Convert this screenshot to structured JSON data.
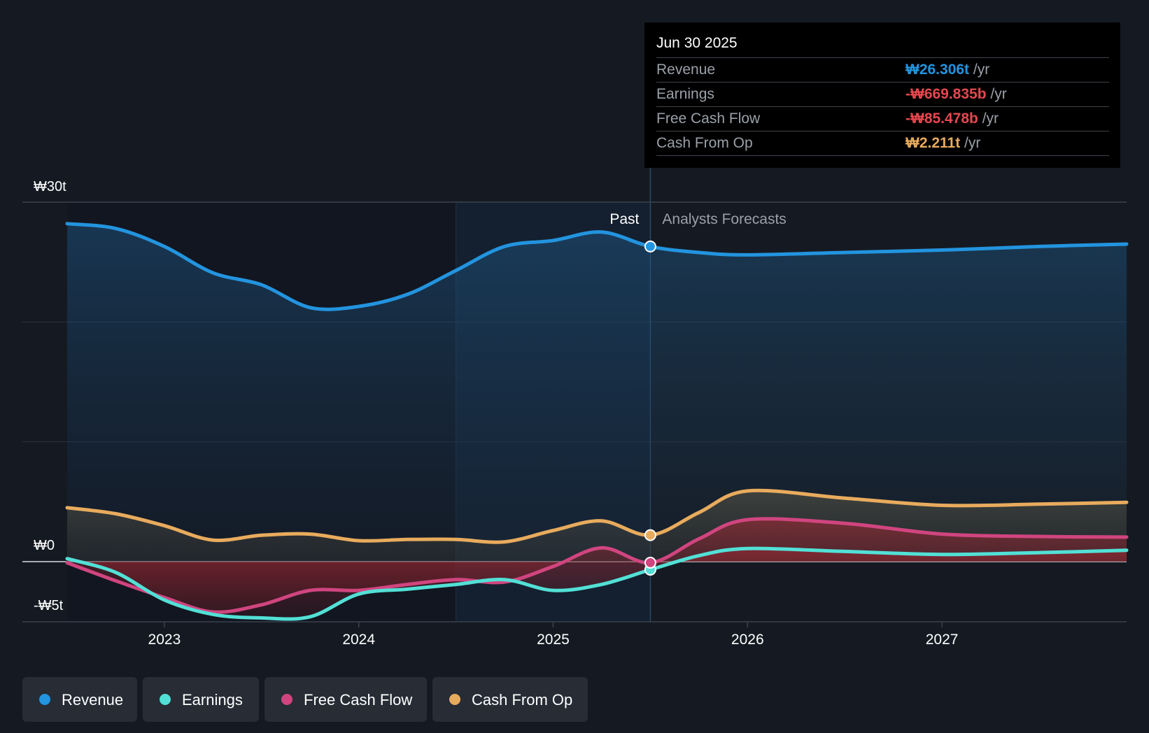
{
  "chart_data": {
    "type": "area",
    "title": "",
    "y_axis": {
      "unit_prefix": "₩",
      "ticks": [
        {
          "value": 30,
          "label": "₩30t"
        },
        {
          "value": 0,
          "label": "₩0"
        },
        {
          "value": -5,
          "label": "-₩5t"
        }
      ],
      "range": [
        -5,
        30
      ]
    },
    "x_axis": {
      "ticks": [
        "2023",
        "2024",
        "2025",
        "2026",
        "2027"
      ],
      "range": [
        2022.5,
        2027.95
      ]
    },
    "past_label": "Past",
    "forecast_label": "Analysts Forecasts",
    "divider_x": 2025.5,
    "highlight_start_x": 2024.5,
    "series": [
      {
        "name": "Revenue",
        "color": "#2394df",
        "points": [
          [
            2022.5,
            28.2
          ],
          [
            2022.75,
            27.8
          ],
          [
            2023.0,
            26.3
          ],
          [
            2023.25,
            24.1
          ],
          [
            2023.5,
            23.1
          ],
          [
            2023.75,
            21.2
          ],
          [
            2024.0,
            21.3
          ],
          [
            2024.25,
            22.3
          ],
          [
            2024.5,
            24.3
          ],
          [
            2024.75,
            26.3
          ],
          [
            2025.0,
            26.8
          ],
          [
            2025.25,
            27.5
          ],
          [
            2025.5,
            26.3
          ],
          [
            2025.75,
            25.8
          ],
          [
            2026.0,
            25.6
          ],
          [
            2026.5,
            25.8
          ],
          [
            2027.0,
            26.0
          ],
          [
            2027.5,
            26.3
          ],
          [
            2027.95,
            26.5
          ]
        ]
      },
      {
        "name": "Earnings",
        "color": "#52e0d6",
        "points": [
          [
            2022.5,
            0.25
          ],
          [
            2022.75,
            -0.9
          ],
          [
            2023.0,
            -3.2
          ],
          [
            2023.25,
            -4.4
          ],
          [
            2023.5,
            -4.7
          ],
          [
            2023.75,
            -4.6
          ],
          [
            2024.0,
            -2.7
          ],
          [
            2024.25,
            -2.3
          ],
          [
            2024.5,
            -1.9
          ],
          [
            2024.75,
            -1.5
          ],
          [
            2025.0,
            -2.4
          ],
          [
            2025.25,
            -1.9
          ],
          [
            2025.5,
            -0.67
          ],
          [
            2025.75,
            0.5
          ],
          [
            2026.0,
            1.1
          ],
          [
            2026.5,
            0.85
          ],
          [
            2027.0,
            0.6
          ],
          [
            2027.5,
            0.75
          ],
          [
            2027.95,
            0.95
          ]
        ]
      },
      {
        "name": "Free Cash Flow",
        "color": "#d0457f",
        "points": [
          [
            2022.5,
            -0.1
          ],
          [
            2022.75,
            -1.6
          ],
          [
            2023.0,
            -3.0
          ],
          [
            2023.25,
            -4.2
          ],
          [
            2023.5,
            -3.6
          ],
          [
            2023.75,
            -2.4
          ],
          [
            2024.0,
            -2.4
          ],
          [
            2024.25,
            -1.9
          ],
          [
            2024.5,
            -1.5
          ],
          [
            2024.75,
            -1.7
          ],
          [
            2025.0,
            -0.4
          ],
          [
            2025.25,
            1.15
          ],
          [
            2025.5,
            -0.085
          ],
          [
            2025.75,
            1.9
          ],
          [
            2026.0,
            3.5
          ],
          [
            2026.5,
            3.2
          ],
          [
            2027.0,
            2.3
          ],
          [
            2027.5,
            2.1
          ],
          [
            2027.95,
            2.05
          ]
        ]
      },
      {
        "name": "Cash From Op",
        "color": "#e8ab5d",
        "points": [
          [
            2022.5,
            4.5
          ],
          [
            2022.75,
            4.0
          ],
          [
            2023.0,
            3.0
          ],
          [
            2023.25,
            1.8
          ],
          [
            2023.5,
            2.2
          ],
          [
            2023.75,
            2.3
          ],
          [
            2024.0,
            1.75
          ],
          [
            2024.25,
            1.85
          ],
          [
            2024.5,
            1.85
          ],
          [
            2024.75,
            1.65
          ],
          [
            2025.0,
            2.6
          ],
          [
            2025.25,
            3.4
          ],
          [
            2025.5,
            2.211
          ],
          [
            2025.75,
            4.1
          ],
          [
            2026.0,
            5.9
          ],
          [
            2026.5,
            5.3
          ],
          [
            2027.0,
            4.7
          ],
          [
            2027.5,
            4.8
          ],
          [
            2027.95,
            4.95
          ]
        ]
      }
    ],
    "tooltip": {
      "date": "Jun 30 2025",
      "rows": [
        {
          "label": "Revenue",
          "value": "₩26.306t",
          "unit": " /yr",
          "color": "#2394df"
        },
        {
          "label": "Earnings",
          "value": "-₩669.835b",
          "unit": " /yr",
          "color": "#e5484d"
        },
        {
          "label": "Free Cash Flow",
          "value": "-₩85.478b",
          "unit": " /yr",
          "color": "#e5484d"
        },
        {
          "label": "Cash From Op",
          "value": "₩2.211t",
          "unit": " /yr",
          "color": "#e8ab5d"
        }
      ]
    },
    "legend": [
      {
        "label": "Revenue",
        "color": "#2394df"
      },
      {
        "label": "Earnings",
        "color": "#52e0d6"
      },
      {
        "label": "Free Cash Flow",
        "color": "#d0457f"
      },
      {
        "label": "Cash From Op",
        "color": "#e8ab5d"
      }
    ]
  }
}
